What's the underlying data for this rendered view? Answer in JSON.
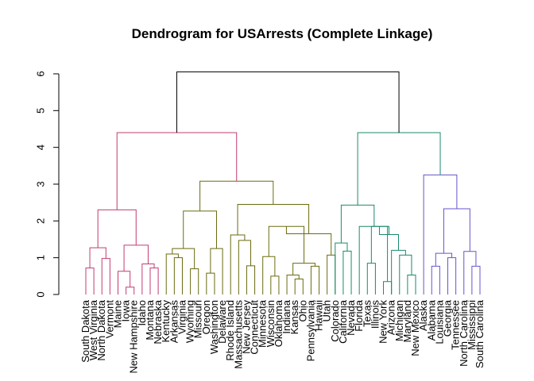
{
  "chart_data": {
    "type": "dendrogram",
    "title": "Dendrogram for USArrests (Complete Linkage)",
    "ylim": [
      0,
      6
    ],
    "y_ticks": [
      "0",
      "1",
      "2",
      "3",
      "4",
      "5",
      "6"
    ],
    "leaves": [
      "South Dakota",
      "West Virginia",
      "North Dakota",
      "Vermont",
      "Maine",
      "Iowa",
      "New Hampshire",
      "Idaho",
      "Montana",
      "Nebraska",
      "Kentucky",
      "Arkansas",
      "Virginia",
      "Wyoming",
      "Missouri",
      "Oregon",
      "Washington",
      "Delaware",
      "Rhode Island",
      "Massachusetts",
      "New Jersey",
      "Connecticut",
      "Minnesota",
      "Wisconsin",
      "Oklahoma",
      "Indiana",
      "Kansas",
      "Ohio",
      "Pennsylvania",
      "Hawaii",
      "Utah",
      "Colorado",
      "California",
      "Nevada",
      "Florida",
      "Texas",
      "Illinois",
      "New York",
      "Arizona",
      "Michigan",
      "Maryland",
      "New Mexico",
      "Alaska",
      "Alabama",
      "Louisiana",
      "Georgia",
      "Tennessee",
      "North Carolina",
      "Mississippi",
      "South Carolina"
    ],
    "cluster_colors": [
      "#c43b74",
      "#6b6b10",
      "#1a8a6e",
      "#6655cc"
    ],
    "top_color": "#000000",
    "merges": [
      {
        "id": "a1",
        "children": [
          "South Dakota",
          "West Virginia"
        ],
        "height": 0.72,
        "cluster": 0
      },
      {
        "id": "a2",
        "children": [
          "North Dakota",
          "Vermont"
        ],
        "height": 0.98,
        "cluster": 0
      },
      {
        "id": "a3",
        "children": [
          "a1",
          "a2"
        ],
        "height": 1.27,
        "cluster": 0
      },
      {
        "id": "a4",
        "children": [
          "Iowa",
          "New Hampshire"
        ],
        "height": 0.2,
        "cluster": 0
      },
      {
        "id": "a5",
        "children": [
          "Maine",
          "a4"
        ],
        "height": 0.63,
        "cluster": 0
      },
      {
        "id": "a6",
        "children": [
          "Montana",
          "Nebraska"
        ],
        "height": 0.72,
        "cluster": 0
      },
      {
        "id": "a7",
        "children": [
          "Idaho",
          "a6"
        ],
        "height": 0.83,
        "cluster": 0
      },
      {
        "id": "a8",
        "children": [
          "a5",
          "a7"
        ],
        "height": 1.34,
        "cluster": 0
      },
      {
        "id": "a9",
        "children": [
          "a3",
          "a8"
        ],
        "height": 2.3,
        "cluster": 0
      },
      {
        "id": "b1",
        "children": [
          "Arkansas",
          "Virginia"
        ],
        "height": 1.0,
        "cluster": 1
      },
      {
        "id": "b2",
        "children": [
          "Kentucky",
          "b1"
        ],
        "height": 1.1,
        "cluster": 1
      },
      {
        "id": "b3",
        "children": [
          "Wyoming",
          "Missouri"
        ],
        "height": 0.7,
        "cluster": 1
      },
      {
        "id": "b4",
        "children": [
          "b2",
          "b3"
        ],
        "height": 1.25,
        "cluster": 1
      },
      {
        "id": "b5",
        "children": [
          "Oregon",
          "Washington"
        ],
        "height": 0.58,
        "cluster": 1
      },
      {
        "id": "b6",
        "children": [
          "Delaware",
          "b5"
        ],
        "height": 1.25,
        "cluster": 1
      },
      {
        "id": "b7",
        "children": [
          "b4",
          "b6"
        ],
        "height": 2.27,
        "cluster": 1
      },
      {
        "id": "b8",
        "children": [
          "New Jersey",
          "Connecticut"
        ],
        "height": 0.78,
        "cluster": 1
      },
      {
        "id": "b9",
        "children": [
          "Massachusetts",
          "b8"
        ],
        "height": 1.47,
        "cluster": 1
      },
      {
        "id": "b10",
        "children": [
          "Rhode Island",
          "b9"
        ],
        "height": 1.62,
        "cluster": 1
      },
      {
        "id": "b11",
        "children": [
          "Wisconsin",
          "Oklahoma"
        ],
        "height": 0.5,
        "cluster": 1
      },
      {
        "id": "b12",
        "children": [
          "Minnesota",
          "b11"
        ],
        "height": 1.03,
        "cluster": 1
      },
      {
        "id": "b13",
        "children": [
          "Kansas",
          "Ohio"
        ],
        "height": 0.42,
        "cluster": 1
      },
      {
        "id": "b14",
        "children": [
          "Indiana",
          "b13"
        ],
        "height": 0.53,
        "cluster": 1
      },
      {
        "id": "b15",
        "children": [
          "Pennsylvania",
          "Hawaii"
        ],
        "height": 0.77,
        "cluster": 1
      },
      {
        "id": "b16",
        "children": [
          "b14",
          "b15"
        ],
        "height": 0.85,
        "cluster": 1
      },
      {
        "id": "b17",
        "children": [
          "b12",
          "b16"
        ],
        "height": 1.85,
        "cluster": 1
      },
      {
        "id": "b18",
        "children": [
          "Utah",
          "Colorado"
        ],
        "height": 1.07,
        "cluster": 1
      },
      {
        "id": "b19",
        "children": [
          "b17",
          "b18"
        ],
        "height": 1.65,
        "cluster": 1
      },
      {
        "id": "b20",
        "children": [
          "b10",
          "b19"
        ],
        "height": 2.45,
        "cluster": 1
      },
      {
        "id": "b21",
        "children": [
          "b7",
          "b20"
        ],
        "height": 3.08,
        "cluster": 1
      },
      {
        "id": "t1",
        "children": [
          "a9",
          "b21"
        ],
        "height": 4.4,
        "cluster": 0
      },
      {
        "id": "c1",
        "children": [
          "California",
          "Nevada"
        ],
        "height": 1.18,
        "cluster": 2
      },
      {
        "id": "c2",
        "children": [
          "Colorado",
          "c1"
        ],
        "height": 1.4,
        "cluster": 2
      },
      {
        "id": "c3",
        "children": [
          "Texas",
          "Illinois"
        ],
        "height": 0.85,
        "cluster": 2
      },
      {
        "id": "c4",
        "children": [
          "New York",
          "Arizona"
        ],
        "height": 0.35,
        "cluster": 2
      },
      {
        "id": "c5",
        "children": [
          "c3",
          "c4"
        ],
        "height": 1.85,
        "cluster": 2
      },
      {
        "id": "c6",
        "children": [
          "Maryland",
          "New Mexico"
        ],
        "height": 0.53,
        "cluster": 2
      },
      {
        "id": "c7",
        "children": [
          "Michigan",
          "c6"
        ],
        "height": 1.07,
        "cluster": 2
      },
      {
        "id": "c8",
        "children": [
          "Arizona",
          "c7"
        ],
        "height": 1.2,
        "cluster": 2
      },
      {
        "id": "c9",
        "children": [
          "c5",
          "c8"
        ],
        "height": 1.63,
        "cluster": 2
      },
      {
        "id": "c10",
        "children": [
          "Florida",
          "c9"
        ],
        "height": 1.85,
        "cluster": 2
      },
      {
        "id": "c11",
        "children": [
          "c2",
          "c10"
        ],
        "height": 2.43,
        "cluster": 2
      },
      {
        "id": "d1",
        "children": [
          "Alabama",
          "Louisiana"
        ],
        "height": 0.77,
        "cluster": 3
      },
      {
        "id": "d2",
        "children": [
          "Georgia",
          "Tennessee"
        ],
        "height": 1.0,
        "cluster": 3
      },
      {
        "id": "d3",
        "children": [
          "d1",
          "d2"
        ],
        "height": 1.12,
        "cluster": 3
      },
      {
        "id": "d4",
        "children": [
          "Mississippi",
          "South Carolina"
        ],
        "height": 0.77,
        "cluster": 3
      },
      {
        "id": "d5",
        "children": [
          "North Carolina",
          "d4"
        ],
        "height": 1.17,
        "cluster": 3
      },
      {
        "id": "d6",
        "children": [
          "d3",
          "d5"
        ],
        "height": 2.33,
        "cluster": 3
      },
      {
        "id": "d7",
        "children": [
          "Alaska",
          "d6"
        ],
        "height": 3.25,
        "cluster": 3
      },
      {
        "id": "t2",
        "children": [
          "c11",
          "d7"
        ],
        "height": 4.4,
        "cluster": 2
      },
      {
        "id": "root",
        "children": [
          "t1",
          "t2"
        ],
        "height": 6.05,
        "cluster": -1
      }
    ]
  }
}
